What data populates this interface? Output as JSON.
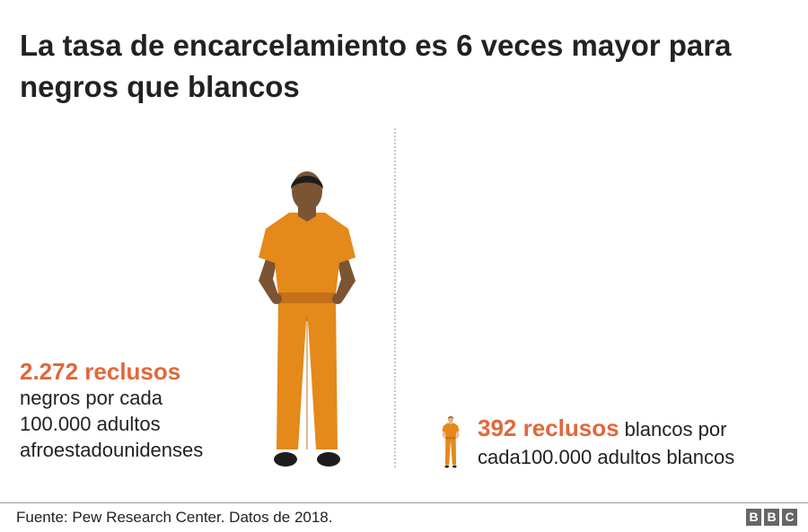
{
  "title": "La tasa de encarcelamiento es 6 veces mayor para negros que blancos",
  "left": {
    "highlight": "2.272 reclusos",
    "line1": "negros por cada",
    "line2": "100.000 adultos",
    "line3": "afroestadounidenses"
  },
  "right": {
    "highlight": "392 reclusos",
    "text": " blancos por cada100.000 adultos blancos"
  },
  "source": "Fuente: Pew Research Center. Datos de 2018.",
  "logo": [
    "B",
    "B",
    "C"
  ],
  "colors": {
    "accent": "#e2673a",
    "uniform": "#e4891a",
    "uniform_belt": "#c4701a",
    "skin_dark": "#7b5433",
    "skin_light": "#e8b48a",
    "hair": "#1d1d1d"
  },
  "chart_data": {
    "type": "pictograph",
    "title": "La tasa de encarcelamiento es 6 veces mayor para negros que blancos",
    "unit": "reclusos por cada 100.000 adultos",
    "categories": [
      "negros",
      "blancos"
    ],
    "values": [
      2272,
      392
    ]
  }
}
